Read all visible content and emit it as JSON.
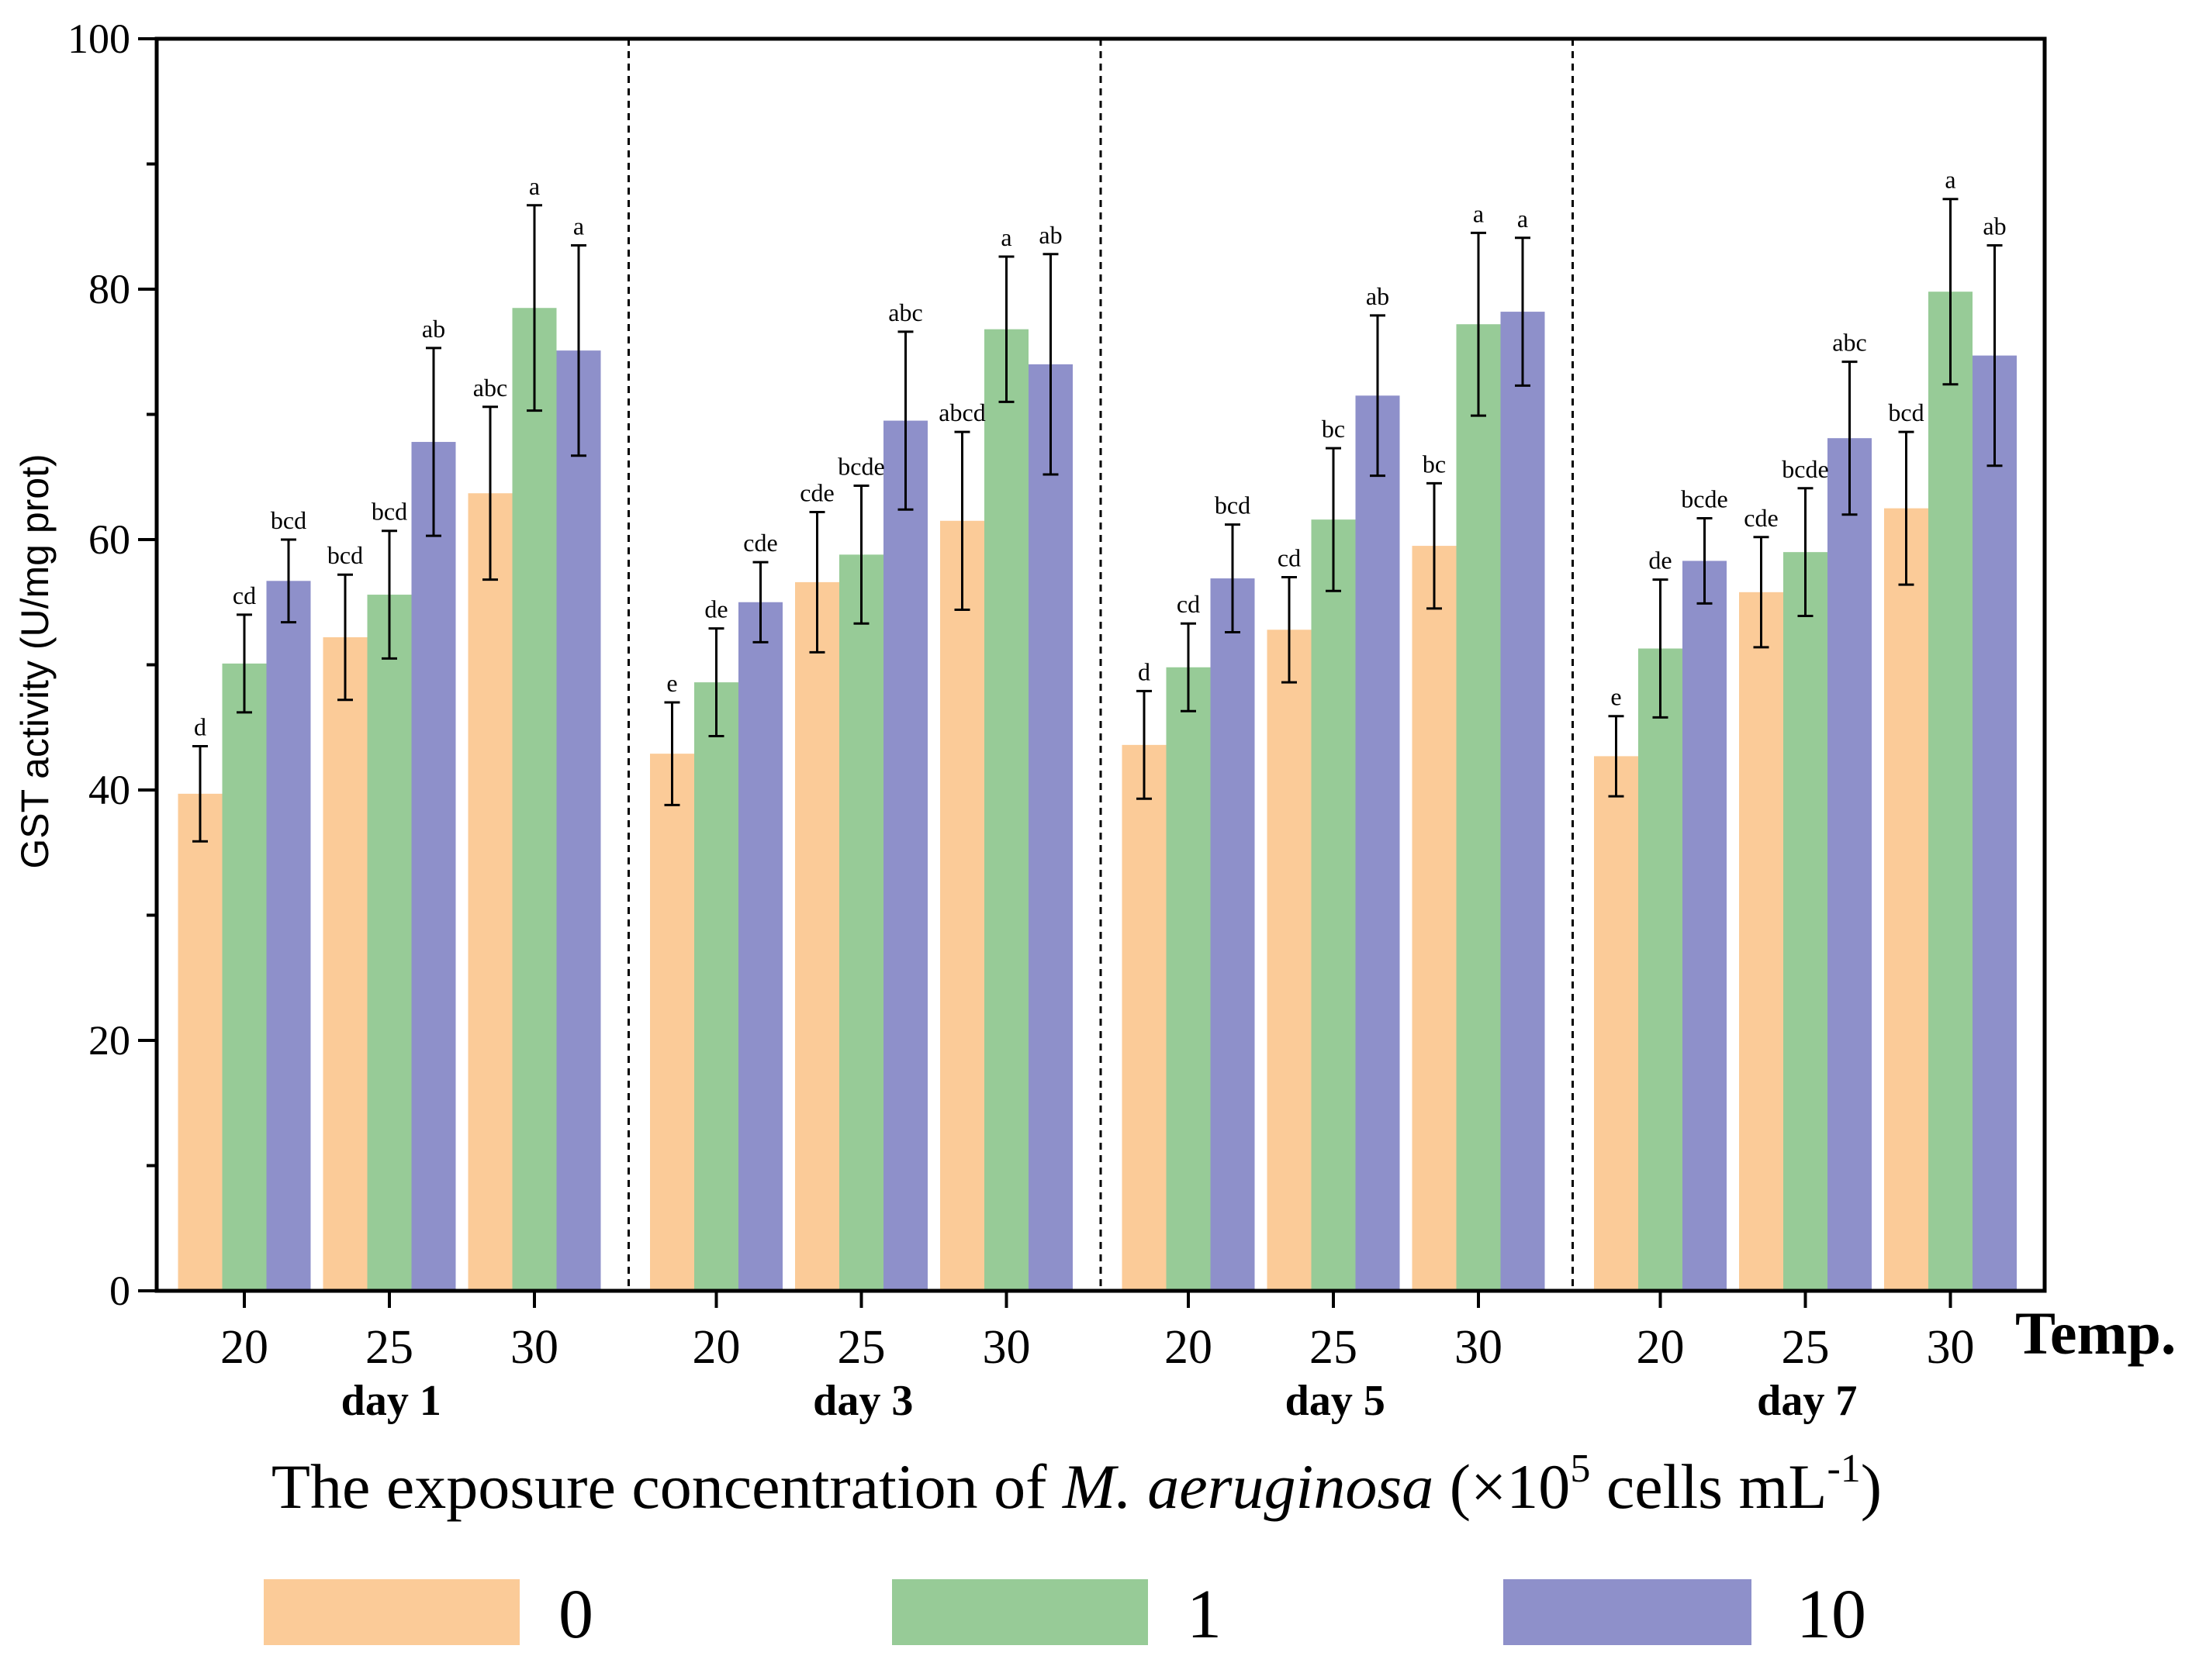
{
  "chart_data": {
    "type": "bar",
    "ylabel": "GST activity (U/mg prot)",
    "ylim": [
      0,
      100
    ],
    "yticks": [
      0,
      20,
      40,
      60,
      80,
      100
    ],
    "temp_axis_label": "Temp.",
    "xlabel": {
      "prefix": "The exposure concentration of ",
      "italic": "M. aeruginosa",
      "mid": " (×10",
      "sup1": "5",
      "after": " cells mL",
      "sup2": "-1",
      "end": ")"
    },
    "colors": {
      "0": "#FBCB98",
      "1": "#97CB97",
      "10": "#8E90CA"
    },
    "legend": [
      "0",
      "1",
      "10"
    ],
    "groups": [
      {
        "day": "day 1",
        "temps": [
          {
            "temp": "20",
            "bars": [
              {
                "series": "0",
                "value": 39.7,
                "err": 3.8,
                "label": "d"
              },
              {
                "series": "1",
                "value": 50.1,
                "err": 3.9,
                "label": "cd"
              },
              {
                "series": "10",
                "value": 56.7,
                "err": 3.3,
                "label": "bcd"
              }
            ]
          },
          {
            "temp": "25",
            "bars": [
              {
                "series": "0",
                "value": 52.2,
                "err": 5.0,
                "label": "bcd"
              },
              {
                "series": "1",
                "value": 55.6,
                "err": 5.1,
                "label": "bcd"
              },
              {
                "series": "10",
                "value": 67.8,
                "err": 7.5,
                "label": "ab"
              }
            ]
          },
          {
            "temp": "30",
            "bars": [
              {
                "series": "0",
                "value": 63.7,
                "err": 6.9,
                "label": "abc"
              },
              {
                "series": "1",
                "value": 78.5,
                "err": 8.2,
                "label": "a"
              },
              {
                "series": "10",
                "value": 75.1,
                "err": 8.4,
                "label": "a"
              }
            ]
          }
        ]
      },
      {
        "day": "day 3",
        "temps": [
          {
            "temp": "20",
            "bars": [
              {
                "series": "0",
                "value": 42.9,
                "err": 4.1,
                "label": "e"
              },
              {
                "series": "1",
                "value": 48.6,
                "err": 4.3,
                "label": "de"
              },
              {
                "series": "10",
                "value": 55.0,
                "err": 3.2,
                "label": "cde"
              }
            ]
          },
          {
            "temp": "25",
            "bars": [
              {
                "series": "0",
                "value": 56.6,
                "err": 5.6,
                "label": "cde"
              },
              {
                "series": "1",
                "value": 58.8,
                "err": 5.5,
                "label": "bcde"
              },
              {
                "series": "10",
                "value": 69.5,
                "err": 7.1,
                "label": "abc"
              }
            ]
          },
          {
            "temp": "30",
            "bars": [
              {
                "series": "0",
                "value": 61.5,
                "err": 7.1,
                "label": "abcd"
              },
              {
                "series": "1",
                "value": 76.8,
                "err": 5.8,
                "label": "a"
              },
              {
                "series": "10",
                "value": 74.0,
                "err": 8.8,
                "label": "ab"
              }
            ]
          }
        ]
      },
      {
        "day": "day 5",
        "temps": [
          {
            "temp": "20",
            "bars": [
              {
                "series": "0",
                "value": 43.6,
                "err": 4.3,
                "label": "d"
              },
              {
                "series": "1",
                "value": 49.8,
                "err": 3.5,
                "label": "cd"
              },
              {
                "series": "10",
                "value": 56.9,
                "err": 4.3,
                "label": "bcd"
              }
            ]
          },
          {
            "temp": "25",
            "bars": [
              {
                "series": "0",
                "value": 52.8,
                "err": 4.2,
                "label": "cd"
              },
              {
                "series": "1",
                "value": 61.6,
                "err": 5.7,
                "label": "bc"
              },
              {
                "series": "10",
                "value": 71.5,
                "err": 6.4,
                "label": "ab"
              }
            ]
          },
          {
            "temp": "30",
            "bars": [
              {
                "series": "0",
                "value": 59.5,
                "err": 5.0,
                "label": "bc"
              },
              {
                "series": "1",
                "value": 77.2,
                "err": 7.3,
                "label": "a"
              },
              {
                "series": "10",
                "value": 78.2,
                "err": 5.9,
                "label": "a"
              }
            ]
          }
        ]
      },
      {
        "day": "day 7",
        "temps": [
          {
            "temp": "20",
            "bars": [
              {
                "series": "0",
                "value": 42.7,
                "err": 3.2,
                "label": "e"
              },
              {
                "series": "1",
                "value": 51.3,
                "err": 5.5,
                "label": "de"
              },
              {
                "series": "10",
                "value": 58.3,
                "err": 3.4,
                "label": "bcde"
              }
            ]
          },
          {
            "temp": "25",
            "bars": [
              {
                "series": "0",
                "value": 55.8,
                "err": 4.4,
                "label": "cde"
              },
              {
                "series": "1",
                "value": 59.0,
                "err": 5.1,
                "label": "bcde"
              },
              {
                "series": "10",
                "value": 68.1,
                "err": 6.1,
                "label": "abc"
              }
            ]
          },
          {
            "temp": "30",
            "bars": [
              {
                "series": "0",
                "value": 62.5,
                "err": 6.1,
                "label": "bcd"
              },
              {
                "series": "1",
                "value": 79.8,
                "err": 7.4,
                "label": "a"
              },
              {
                "series": "10",
                "value": 74.7,
                "err": 8.8,
                "label": "ab"
              }
            ]
          }
        ]
      }
    ]
  }
}
